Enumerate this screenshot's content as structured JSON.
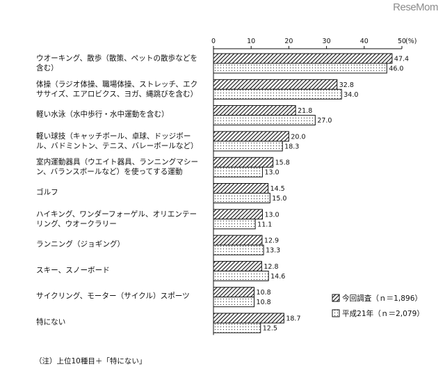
{
  "watermark": "ReseMom",
  "note": "（注）上位10種目＋「特にない」",
  "chart_data": {
    "type": "bar",
    "orientation": "horizontal",
    "x_ticks": [
      "0",
      "10",
      "20",
      "30",
      "40",
      "50"
    ],
    "x_unit": "(%)",
    "xlim": [
      0,
      50
    ],
    "categories": [
      [
        "ウオーキング、散歩（散策、ペットの散歩などを",
        "含む）"
      ],
      [
        "体操（ラジオ体操、職場体操、ストレッチ、エク",
        "ササイズ、エアロビクス、ヨガ、縄跳びを含む）"
      ],
      [
        "軽い水泳（水中歩行・水中運動を含む）"
      ],
      [
        "軽い球技（キャッチボール、卓球、ドッジボー",
        "ル、バドミントン、テニス、バレーボールなど）"
      ],
      [
        "室内運動器具（ウエイト器具、ランニングマシー",
        "ン、バランスボールなど）を使ってする運動"
      ],
      [
        "ゴルフ"
      ],
      [
        "ハイキング、ワンダーフォーゲル、オリエンテー",
        "リング、ウオークラリー"
      ],
      [
        "ランニング（ジョギング）"
      ],
      [
        "スキー、スノーボード"
      ],
      [
        "サイクリング、モーター（サイクル）スポーツ"
      ],
      [
        "特にない"
      ]
    ],
    "series": [
      {
        "name": "今回調査（ｎ＝1,896）",
        "pattern": "hatch",
        "values": [
          47.4,
          32.8,
          21.8,
          20.0,
          15.8,
          14.5,
          13.0,
          12.9,
          12.8,
          10.8,
          18.7
        ],
        "labels": [
          "47.4",
          "32.8",
          "21.8",
          "20.0",
          "15.8",
          "14.5",
          "13.0",
          "12.9",
          "12.8",
          "10.8",
          "18.7"
        ]
      },
      {
        "name": "平成21年（ｎ＝2,079）",
        "pattern": "dots",
        "values": [
          46.0,
          34.0,
          27.0,
          18.3,
          13.0,
          15.0,
          11.1,
          13.3,
          14.6,
          10.8,
          12.5
        ],
        "labels": [
          "46.0",
          "34.0",
          "27.0",
          "18.3",
          "13.0",
          "15.0",
          "11.1",
          "13.3",
          "14.6",
          "10.8",
          "12.5"
        ]
      }
    ],
    "legend_position": "bottom-right",
    "colors": {
      "bar_stroke": "#111111",
      "axis": "#111111",
      "background": "#ffffff"
    }
  }
}
